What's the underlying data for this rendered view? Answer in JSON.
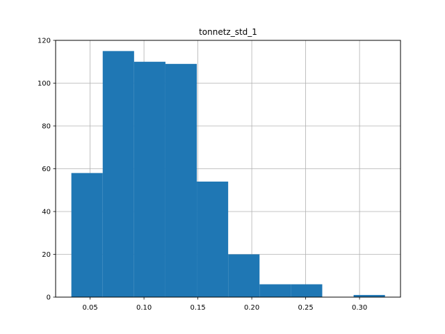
{
  "chart_data": {
    "type": "bar",
    "subtype": "histogram",
    "title": "tonnetz_std_1",
    "xlabel": "",
    "ylabel": "",
    "bin_edges": [
      0.0326,
      0.0617,
      0.0908,
      0.1199,
      0.149,
      0.1781,
      0.2072,
      0.2363,
      0.2654,
      0.2945,
      0.3236
    ],
    "values": [
      58,
      115,
      110,
      109,
      54,
      20,
      6,
      6,
      0,
      1
    ],
    "xlim": [
      0.018,
      0.338
    ],
    "ylim": [
      0,
      120
    ],
    "xticks": [
      0.05,
      0.1,
      0.15,
      0.2,
      0.25,
      0.3
    ],
    "xtick_labels": [
      "0.05",
      "0.10",
      "0.15",
      "0.20",
      "0.25",
      "0.30"
    ],
    "yticks": [
      0,
      20,
      40,
      60,
      80,
      100,
      120
    ],
    "ytick_labels": [
      "0",
      "20",
      "40",
      "60",
      "80",
      "100",
      "120"
    ],
    "grid": true,
    "bar_color": "#1f77b4",
    "grid_color": "#b0b0b0"
  }
}
